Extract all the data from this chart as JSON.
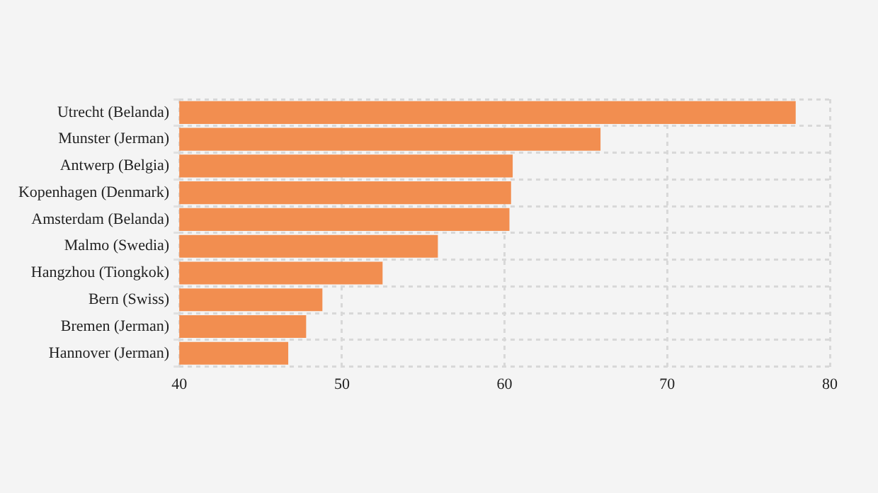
{
  "chart_data": {
    "type": "bar",
    "orientation": "horizontal",
    "categories": [
      "Utrecht (Belanda)",
      "Munster (Jerman)",
      "Antwerp (Belgia)",
      "Kopenhagen (Denmark)",
      "Amsterdam (Belanda)",
      "Malmo (Swedia)",
      "Hangzhou (Tiongkok)",
      "Bern (Swiss)",
      "Bremen (Jerman)",
      "Hannover (Jerman)"
    ],
    "values": [
      77.9,
      65.9,
      60.5,
      60.4,
      60.3,
      55.9,
      52.5,
      48.8,
      47.8,
      46.7
    ],
    "color": "#f28e50",
    "xlim": [
      40,
      80
    ],
    "xticks": [
      40,
      50,
      60,
      70,
      80
    ],
    "grid": true,
    "legend": false
  }
}
